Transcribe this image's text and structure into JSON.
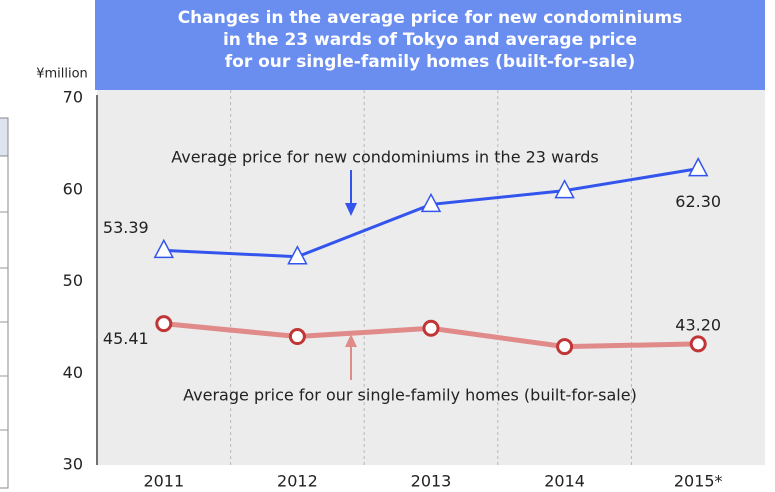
{
  "chart_data": {
    "type": "line",
    "title": [
      "Changes in the average price for  new condominiums",
      "in the 23 wards of Tokyo and average price",
      "for our single-family homes (built-for-sale)"
    ],
    "y_label": "¥million",
    "categories": [
      "2011",
      "2012",
      "2013",
      "2014",
      "2015*"
    ],
    "series": [
      {
        "name": "Average price for new condominiums in the 23 wards",
        "color": "#3355ee",
        "marker": "triangle",
        "values": [
          53.39,
          52.7,
          58.4,
          59.9,
          62.3
        ],
        "value_labels": [
          "53.39",
          null,
          null,
          null,
          "62.30"
        ]
      },
      {
        "name": "Average price for our single-family homes (built-for-sale)",
        "color": "#e08a8a",
        "marker": "circle",
        "values": [
          45.41,
          44.0,
          44.9,
          42.9,
          43.2
        ],
        "value_labels": [
          "45.41",
          null,
          null,
          null,
          "43.20"
        ]
      }
    ],
    "ylim": [
      30,
      70
    ],
    "yticks": [
      30,
      40,
      50,
      60,
      70
    ],
    "grid": true
  }
}
